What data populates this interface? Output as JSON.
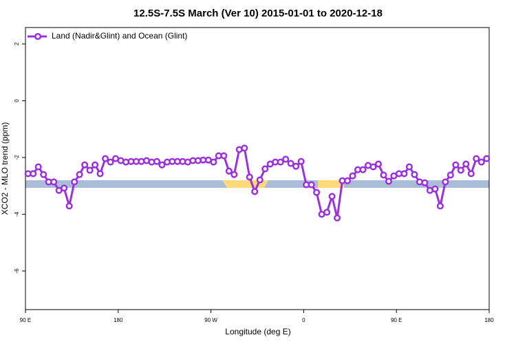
{
  "chart_data": {
    "type": "line",
    "title": "12.5S-7.5S March (Ver 10)   2015-01-01 to 2020-12-18",
    "xlabel": "Longitude (deg E)",
    "ylabel": "XCO2 - MLO trend (ppm)",
    "x": [
      92.5,
      97.5,
      102.5,
      107.5,
      112.5,
      117.5,
      122.5,
      127.5,
      132.5,
      137.5,
      142.5,
      147.5,
      152.5,
      157.5,
      162.5,
      167.5,
      172.5,
      177.5,
      182.5,
      187.5,
      192.5,
      197.5,
      202.5,
      207.5,
      212.5,
      217.5,
      222.5,
      227.5,
      232.5,
      237.5,
      242.5,
      247.5,
      252.5,
      257.5,
      262.5,
      267.5,
      272.5,
      277.5,
      282.5,
      287.5,
      292.5,
      297.5,
      302.5,
      307.5,
      312.5,
      317.5,
      322.5,
      327.5,
      332.5,
      337.5,
      342.5,
      347.5,
      352.5,
      357.5,
      362.5,
      367.5,
      372.5,
      377.5,
      382.5,
      387.5,
      392.5,
      397.5,
      402.5,
      407.5,
      412.5,
      417.5,
      422.5,
      427.5,
      432.5,
      437.5,
      442.5,
      447.5,
      452.5,
      457.5,
      462.5,
      467.5,
      472.5,
      477.5,
      482.5,
      487.5,
      492.5,
      497.5,
      502.5,
      507.5,
      512.5,
      517.5,
      522.5,
      527.5,
      532.5,
      537.5
    ],
    "series": [
      {
        "name": "Land (Nadir&Glint) and Ocean (Glint)",
        "color": "#9b30e0",
        "values": [
          -2.57,
          -2.57,
          -2.33,
          -2.6,
          -2.86,
          -2.86,
          -3.16,
          -3.08,
          -3.71,
          -2.86,
          -2.6,
          -2.26,
          -2.45,
          -2.26,
          -2.57,
          -2.04,
          -2.16,
          -2.04,
          -2.11,
          -2.16,
          -2.14,
          -2.14,
          -2.14,
          -2.11,
          -2.16,
          -2.14,
          -2.26,
          -2.16,
          -2.14,
          -2.14,
          -2.14,
          -2.16,
          -2.11,
          -2.11,
          -2.09,
          -2.09,
          -2.16,
          -1.94,
          -1.94,
          -2.48,
          -2.6,
          -1.72,
          -1.67,
          -2.69,
          -3.2,
          -2.79,
          -2.4,
          -2.23,
          -2.16,
          -2.16,
          -2.06,
          -2.21,
          -2.31,
          -2.14,
          -2.96,
          -2.96,
          -3.23,
          -4.0,
          -3.93,
          -3.37,
          -4.13,
          -2.82,
          -2.82,
          -2.65,
          -2.43,
          -2.43,
          -2.28,
          -2.33,
          -2.23,
          -2.62,
          -2.84,
          -2.65,
          -2.57,
          -2.57,
          -2.33,
          -2.6,
          -2.86,
          -2.89,
          -3.16,
          -3.11,
          -3.71,
          -2.86,
          -2.62,
          -2.26,
          -2.45,
          -2.23,
          -2.57,
          -2.04,
          -2.16,
          -2.04
        ]
      }
    ],
    "xlim": [
      90,
      540
    ],
    "xticks": [
      {
        "value": 90,
        "label": "90 E"
      },
      180,
      {
        "value": 270,
        "label": "90 W"
      },
      {
        "value": 360,
        "label": "0"
      },
      {
        "value": 450,
        "label": "90 E"
      },
      {
        "value": 540,
        "label": "180"
      }
    ],
    "ylim": [
      -7.36,
      2.58
    ],
    "yticks": [
      2,
      0,
      -2,
      -4,
      -6
    ],
    "legend": "top-left"
  }
}
